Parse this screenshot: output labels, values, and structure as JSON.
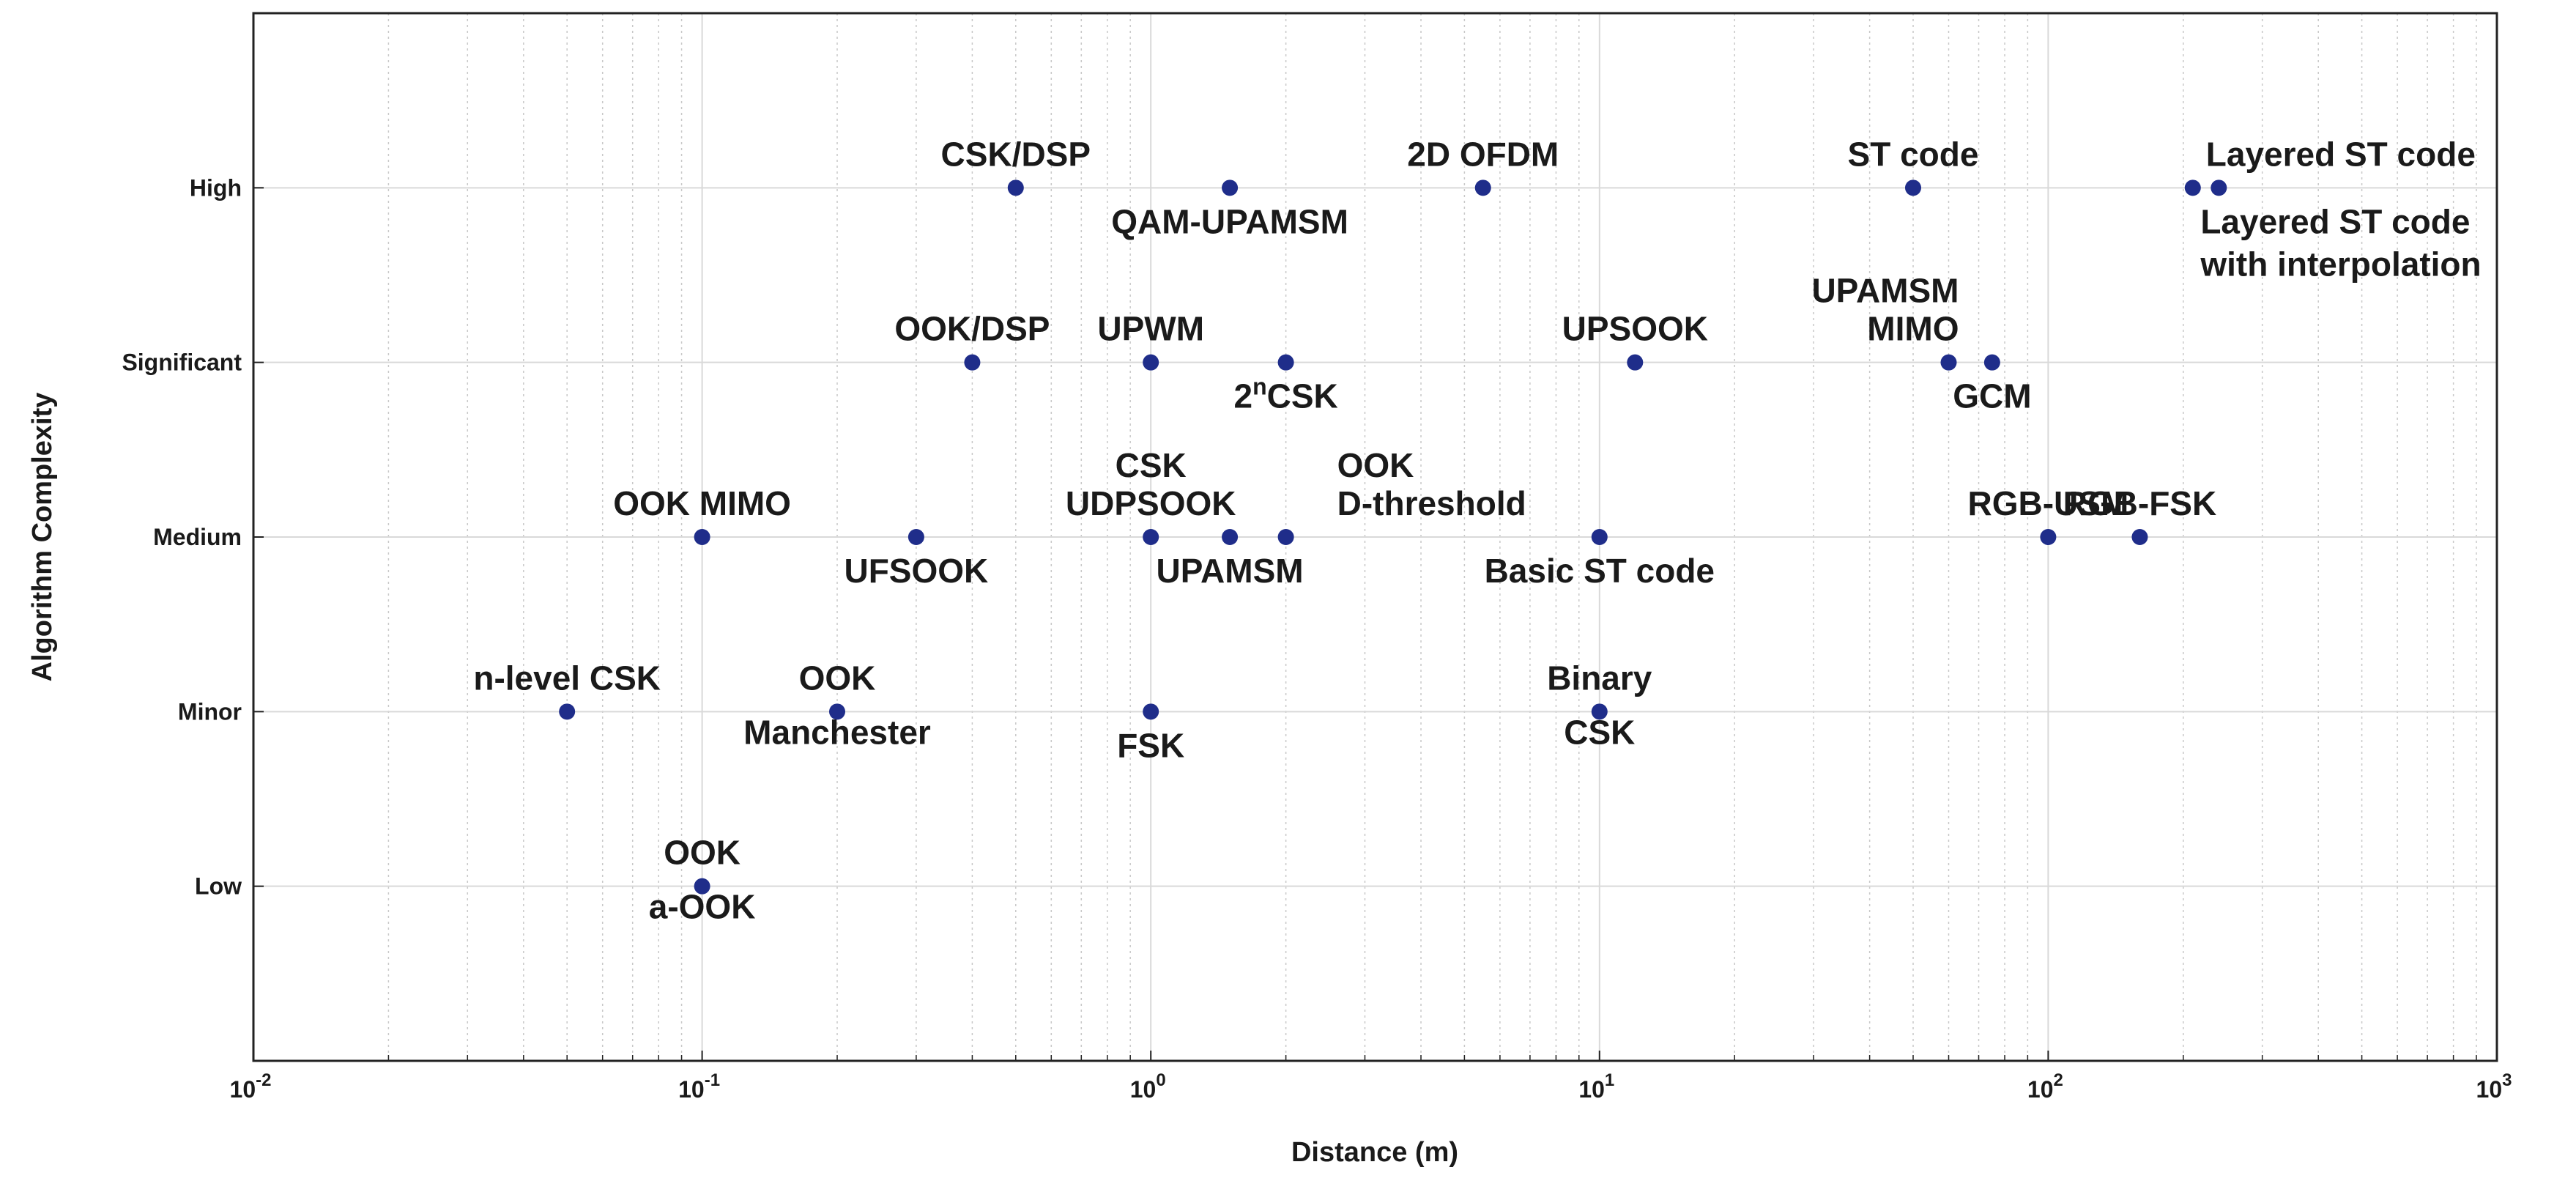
{
  "chart_data": {
    "type": "scatter",
    "title": "",
    "xlabel": "Distance (m)",
    "ylabel": "Algorithm Complexity",
    "xscale": "log",
    "xlim": [
      0.01,
      1000
    ],
    "x_ticks": [
      {
        "base": "10",
        "exp": "-2"
      },
      {
        "base": "10",
        "exp": "-1"
      },
      {
        "base": "10",
        "exp": "0"
      },
      {
        "base": "10",
        "exp": "1"
      },
      {
        "base": "10",
        "exp": "2"
      },
      {
        "base": "10",
        "exp": "3"
      }
    ],
    "ylim": [
      0,
      6
    ],
    "y_categories": [
      "Low",
      "Minor",
      "Medium",
      "Significant",
      "High"
    ],
    "grid": true,
    "marker_color": "#1f2d8a",
    "points": [
      {
        "x": 0.05,
        "y": 2,
        "label": [
          "n-level CSK"
        ],
        "anchor": "middle",
        "pos": "above"
      },
      {
        "x": 0.1,
        "y": 1,
        "label": [
          "OOK",
          "a-OOK"
        ],
        "anchor": "middle",
        "pos": "around"
      },
      {
        "x": 0.1,
        "y": 3,
        "label": [
          "OOK MIMO"
        ],
        "anchor": "middle",
        "pos": "above"
      },
      {
        "x": 0.2,
        "y": 2,
        "label": [
          "OOK",
          "Manchester"
        ],
        "anchor": "middle",
        "pos": "around"
      },
      {
        "x": 0.3,
        "y": 3,
        "label": [
          "UFSOOK"
        ],
        "anchor": "middle",
        "pos": "below"
      },
      {
        "x": 0.4,
        "y": 4,
        "label": [
          "OOK/DSP"
        ],
        "anchor": "middle",
        "pos": "above"
      },
      {
        "x": 0.5,
        "y": 5,
        "label": [
          "CSK/DSP"
        ],
        "anchor": "middle",
        "pos": "above"
      },
      {
        "x": 1,
        "y": 2,
        "label": [
          "FSK"
        ],
        "anchor": "middle",
        "pos": "below"
      },
      {
        "x": 1,
        "y": 3,
        "label": [
          "CSK",
          "UDPSOOK"
        ],
        "anchor": "middle",
        "pos": "above2"
      },
      {
        "x": 1,
        "y": 4,
        "label": [
          "UPWM"
        ],
        "anchor": "middle",
        "pos": "above"
      },
      {
        "x": 1.5,
        "y": 3,
        "label": [
          "UPAMSM"
        ],
        "anchor": "middle",
        "pos": "below"
      },
      {
        "x": 1.5,
        "y": 5,
        "label": [
          "QAM-UPAMSM"
        ],
        "anchor": "middle",
        "pos": "below"
      },
      {
        "x": 2,
        "y": 3,
        "label": [
          "OOK",
          "D-threshold"
        ],
        "anchor": "start",
        "pos": "above2"
      },
      {
        "x": 2,
        "y": 4,
        "label": [
          "CSK"
        ],
        "sup": "n",
        "prefix": "2",
        "anchor": "middle",
        "pos": "below"
      },
      {
        "x": 5.5,
        "y": 5,
        "label": [
          "2D OFDM"
        ],
        "anchor": "middle",
        "pos": "above"
      },
      {
        "x": 10,
        "y": 2,
        "label": [
          "Binary",
          "CSK"
        ],
        "anchor": "middle",
        "pos": "around"
      },
      {
        "x": 10,
        "y": 3,
        "label": [
          "Basic ST code"
        ],
        "anchor": "middle",
        "pos": "below"
      },
      {
        "x": 12,
        "y": 4,
        "label": [
          "UPSOOK"
        ],
        "anchor": "middle",
        "pos": "above"
      },
      {
        "x": 50,
        "y": 5,
        "label": [
          "ST code"
        ],
        "anchor": "middle",
        "pos": "above"
      },
      {
        "x": 60,
        "y": 4,
        "label": [
          "UPAMSM",
          "MIMO"
        ],
        "anchor": "end",
        "pos": "above2"
      },
      {
        "x": 75,
        "y": 4,
        "label": [
          "GCM"
        ],
        "anchor": "middle",
        "pos": "below"
      },
      {
        "x": 100,
        "y": 3,
        "label": [
          "RGB-USM"
        ],
        "anchor": "middle",
        "pos": "above"
      },
      {
        "x": 160,
        "y": 3,
        "label": [
          "RGB-FSK"
        ],
        "anchor": "middle",
        "pos": "above"
      },
      {
        "x": 210,
        "y": 5,
        "label": [
          "Layered ST code"
        ],
        "anchor": "start",
        "pos": "above"
      },
      {
        "x": 240,
        "y": 5,
        "label": [
          "Layered ST code",
          "with interpolation"
        ],
        "anchor": "start",
        "pos": "below2"
      }
    ]
  }
}
